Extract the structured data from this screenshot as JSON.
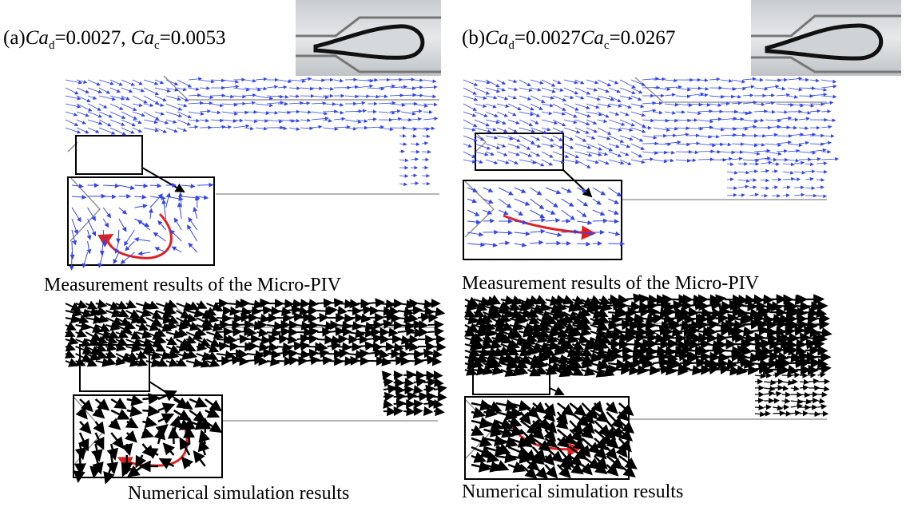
{
  "panels": [
    {
      "title": {
        "prefix": "(a)",
        "var1": "Ca",
        "sub1": "d",
        "val1": "=0.0027, ",
        "var2": "Ca",
        "sub2": "c",
        "val2": "=0.0053"
      },
      "captions": [
        "Measurement results of the Micro-PIV",
        "Numerical simulation results"
      ]
    },
    {
      "title": {
        "prefix": "(b)",
        "var1": "Ca",
        "sub1": "d",
        "val1": "=0.0027",
        "var2": "Ca",
        "sub2": "c",
        "val2": "=0.0267"
      },
      "captions": [
        "Measurement results of the Micro-PIV",
        "Numerical simulation results"
      ]
    }
  ]
}
